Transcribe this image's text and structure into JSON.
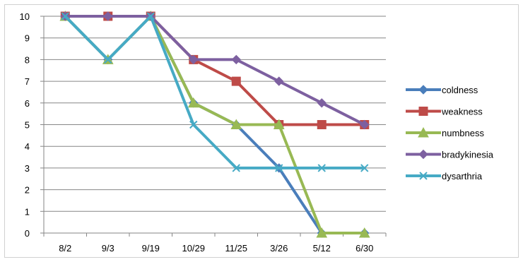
{
  "chart_data": {
    "type": "line",
    "categories": [
      "8/2",
      "9/3",
      "9/19",
      "10/29",
      "11/25",
      "3/26",
      "5/12",
      "6/30"
    ],
    "ylim": [
      0,
      10
    ],
    "y_ticks": [
      "0",
      "1",
      "2",
      "3",
      "4",
      "5",
      "6",
      "7",
      "8",
      "9",
      "10"
    ],
    "grid": "horizontal",
    "legend_position": "right",
    "series": [
      {
        "name": "coldness",
        "color": "#4a7ebb",
        "marker": "diamond",
        "values": [
          10,
          8,
          10,
          6,
          5,
          3,
          0,
          0
        ]
      },
      {
        "name": "weakness",
        "color": "#be4b48",
        "marker": "square",
        "values": [
          10,
          10,
          10,
          8,
          7,
          5,
          5,
          5
        ]
      },
      {
        "name": "numbness",
        "color": "#98b954",
        "marker": "triangle",
        "values": [
          10,
          8,
          10,
          6,
          5,
          5,
          0,
          0
        ]
      },
      {
        "name": "bradykinesia",
        "color": "#7d60a0",
        "marker": "diamond",
        "values": [
          10,
          10,
          10,
          8,
          8,
          7,
          6,
          5
        ]
      },
      {
        "name": "dysarthria",
        "color": "#46aac5",
        "marker": "x",
        "values": [
          10,
          8,
          10,
          5,
          3,
          3,
          3,
          3
        ]
      }
    ]
  }
}
